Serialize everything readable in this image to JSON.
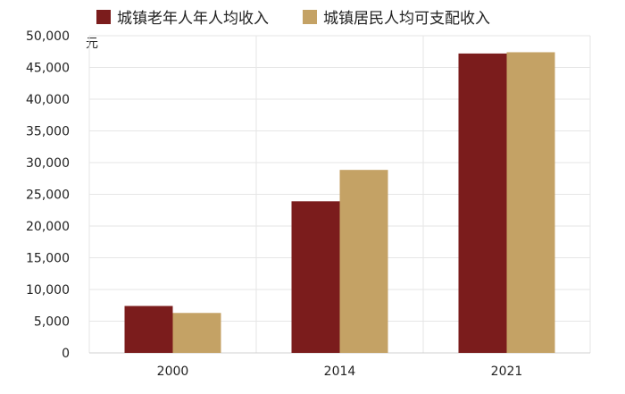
{
  "chart_data": {
    "type": "bar",
    "categories": [
      "2000",
      "2014",
      "2021"
    ],
    "series": [
      {
        "name": "城镇老年人年人均收入",
        "values": [
          7400,
          23900,
          47200
        ],
        "color": "#7B1C1C"
      },
      {
        "name": "城镇居民人均可支配收入",
        "values": [
          6300,
          28850,
          47400
        ],
        "color": "#C4A265"
      }
    ],
    "ylim": [
      0,
      50000
    ],
    "yticks": [
      0,
      5000,
      10000,
      15000,
      20000,
      25000,
      30000,
      35000,
      40000,
      45000,
      50000
    ],
    "ytick_labels": [
      "0",
      "5,000",
      "10,000",
      "15,000",
      "20,000",
      "25,000",
      "30,000",
      "35,000",
      "40,000",
      "45,000",
      "50,000"
    ],
    "unit": "元",
    "grid": true,
    "legend_position": "top"
  }
}
